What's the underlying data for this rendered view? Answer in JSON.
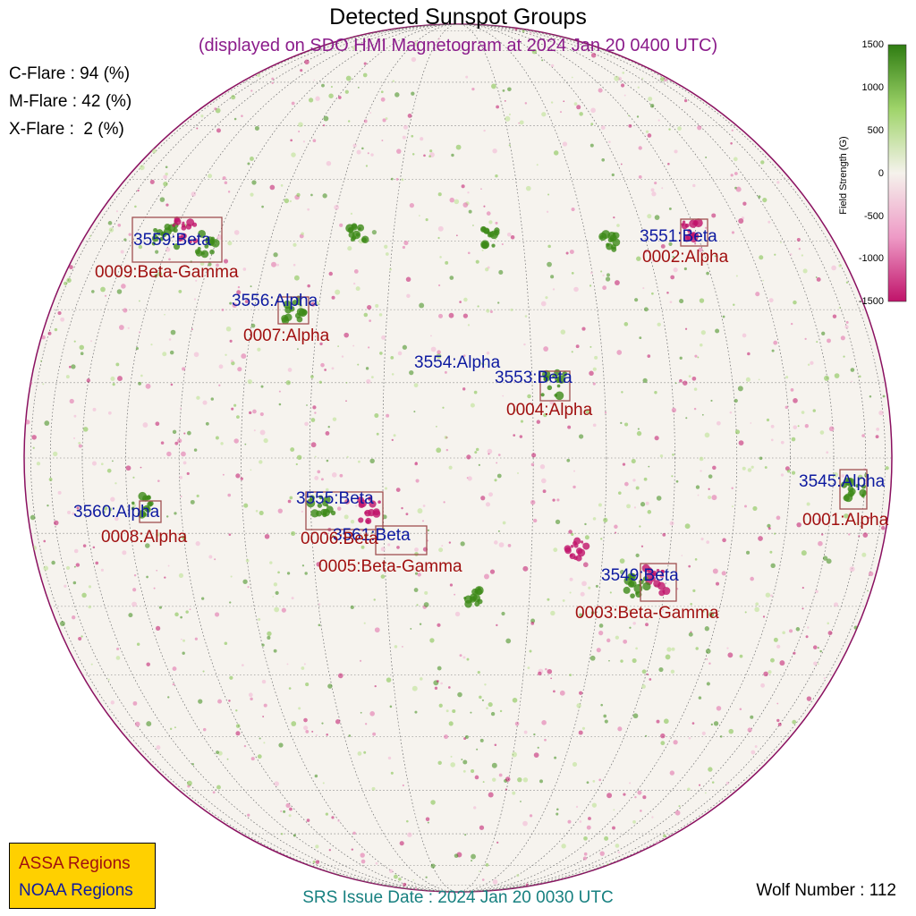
{
  "title": "Detected Sunspot Groups",
  "subtitle": "(displayed on SDO HMI Magnetogram at 2024 Jan 20 0400 UTC)",
  "flares": {
    "c": "C-Flare : 94 (%)",
    "m": "M-Flare : 42 (%)",
    "x": "X-Flare :  2 (%)"
  },
  "colorbar": {
    "title": "Field Strength (G)",
    "ticks": [
      "1500",
      "1000",
      "500",
      "0",
      "-500",
      "-1000",
      "-1500"
    ],
    "colors": {
      "positive": "#2f7d12",
      "neutral": "#f5f2ec",
      "negative": "#c0136a"
    }
  },
  "noaa_regions": [
    {
      "id": "noaa-3559",
      "text": "3559:Beta"
    },
    {
      "id": "noaa-3551",
      "text": "3551:Beta"
    },
    {
      "id": "noaa-3556",
      "text": "3556:Alpha"
    },
    {
      "id": "noaa-3554",
      "text": "3554:Alpha"
    },
    {
      "id": "noaa-3553",
      "text": "3553:Beta"
    },
    {
      "id": "noaa-3545",
      "text": "3545:Alpha"
    },
    {
      "id": "noaa-3560",
      "text": "3560:Alpha"
    },
    {
      "id": "noaa-3555",
      "text": "3555:Beta"
    },
    {
      "id": "noaa-3561",
      "text": "3561:Beta"
    },
    {
      "id": "noaa-3549",
      "text": "3549:Beta"
    }
  ],
  "assa_regions": [
    {
      "id": "assa-0009",
      "text": "0009:Beta-Gamma"
    },
    {
      "id": "assa-0002",
      "text": "0002:Alpha"
    },
    {
      "id": "assa-0007",
      "text": "0007:Alpha"
    },
    {
      "id": "assa-0004",
      "text": "0004:Alpha"
    },
    {
      "id": "assa-0001",
      "text": "0001:Alpha"
    },
    {
      "id": "assa-0008",
      "text": "0008:Alpha"
    },
    {
      "id": "assa-0006",
      "text": "0006:Beta"
    },
    {
      "id": "assa-0005",
      "text": "0005:Beta-Gamma"
    },
    {
      "id": "assa-0003",
      "text": "0003:Beta-Gamma"
    }
  ],
  "legend": {
    "assa": "ASSA Regions",
    "noaa": "NOAA Regions"
  },
  "srs": "SRS Issue Date : 2024 Jan 20 0030 UTC",
  "wolf": "Wolf Number : 112"
}
